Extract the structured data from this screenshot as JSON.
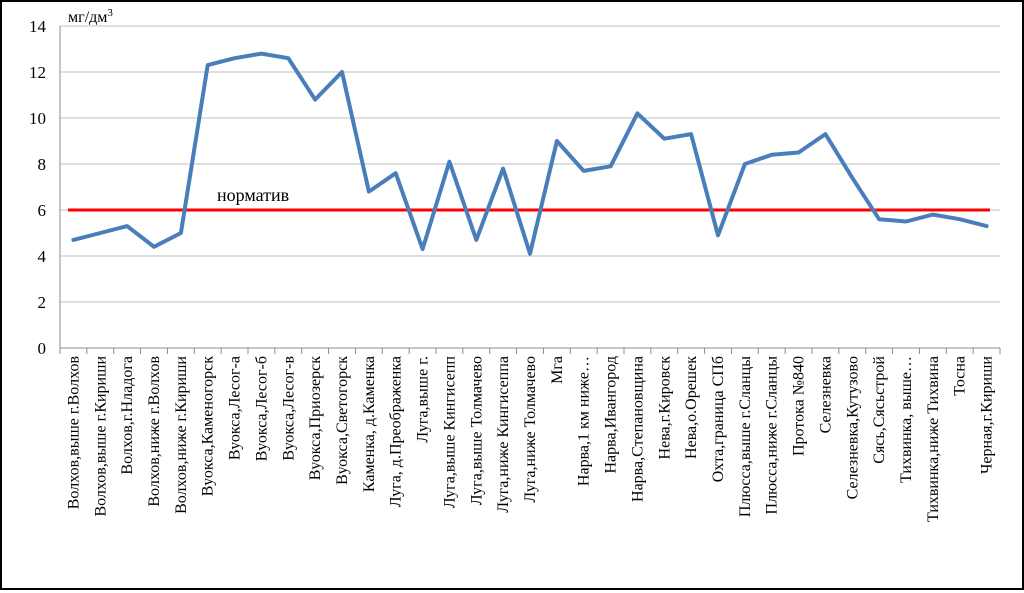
{
  "chart_data": {
    "type": "line",
    "unit_label": "мг/дм",
    "unit_superscript": "3",
    "ylim": [
      0,
      14
    ],
    "yticks": [
      "0",
      "2",
      "4",
      "6",
      "8",
      "10",
      "12",
      "14"
    ],
    "grid": true,
    "categories": [
      "Волхов,выше г.Волхов",
      "Волхов,выше г.Кириши",
      "Волхов,г.Нладога",
      "Волхов,ниже г.Волхов",
      "Волхов,ниже г.Кириши",
      "Вуокса,Каменогорск",
      "Вуокса,Лесог-а",
      "Вуокса,Лесог-б",
      "Вуокса,Лесог-в",
      "Вуокса,Приозерск",
      "Вуокса,Светогорск",
      "Каменка, д.Каменка",
      "Луга, д.Преображенка",
      "Луга,выше г.",
      "Луга,выше Кингисепп",
      "Луга,выше Толмачево",
      "Луга,ниже Кингисеппа",
      "Луга,ниже Толмачево",
      "Мга",
      "Нарва,1 км ниже…",
      "Нарва,Ивангород",
      "Нарва,Степановщина",
      "Нева,г.Кировск",
      "Нева,о.Орешек",
      "Охта,граница СПб",
      "Плюсса,выше г.Сланцы",
      "Плюсса,ниже г.Сланцы",
      "Протока №840",
      "Селезневка",
      "Селезневка,Кутузово",
      "Сясь,Сясьстрой",
      "Тихвинка, выше…",
      "Тихвинка,ниже Тихвина",
      "Тосна",
      "Черная,г.Кириши"
    ],
    "series": [
      {
        "values": [
          4.7,
          5.0,
          5.3,
          4.4,
          5.0,
          12.3,
          12.6,
          12.8,
          12.6,
          10.8,
          12.0,
          6.8,
          7.6,
          4.3,
          8.1,
          4.7,
          7.8,
          4.1,
          9.0,
          7.7,
          7.9,
          10.2,
          9.1,
          9.3,
          4.9,
          8.0,
          8.4,
          8.5,
          9.3,
          7.4,
          5.6,
          5.5,
          5.8,
          5.6,
          5.3
        ],
        "color": "#4a7ebb"
      }
    ],
    "reference_line": {
      "value": 6,
      "label": "норматив",
      "color": "#ff0000"
    }
  }
}
